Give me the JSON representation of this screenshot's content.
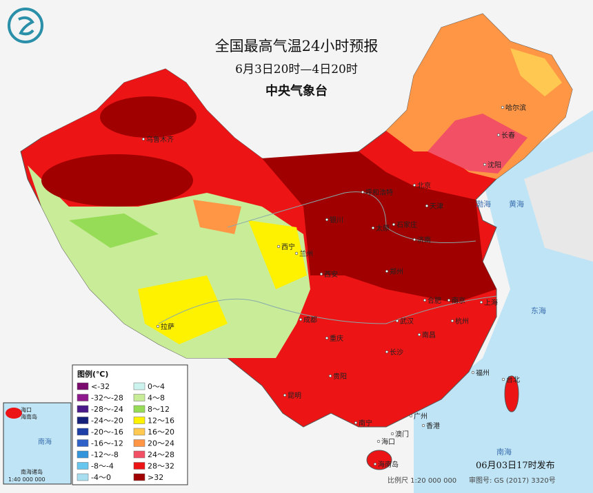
{
  "header": {
    "title": "全国最高气温24小时预报",
    "subtitle": "6月3日20时—4日20时",
    "agency": "中央气象台"
  },
  "legend": {
    "title": "图例(℃)",
    "items": [
      {
        "label": "<-32",
        "color": "#7a0a6e"
      },
      {
        "label": "-32～-28",
        "color": "#8e1a8e"
      },
      {
        "label": "-28～-24",
        "color": "#4a1a8a"
      },
      {
        "label": "-24～-20",
        "color": "#14207a"
      },
      {
        "label": "-20～-16",
        "color": "#1e3ea8"
      },
      {
        "label": "-16～-12",
        "color": "#2f62c8"
      },
      {
        "label": "-12～-8",
        "color": "#3396dc"
      },
      {
        "label": "-8～-4",
        "color": "#66c6ee"
      },
      {
        "label": "-4～0",
        "color": "#a8dff0"
      },
      {
        "label": "0～4",
        "color": "#cdf3ee"
      },
      {
        "label": "4～8",
        "color": "#c8ec98"
      },
      {
        "label": "8～12",
        "color": "#96dc56"
      },
      {
        "label": "12～16",
        "color": "#fff200"
      },
      {
        "label": "16～20",
        "color": "#ffc850"
      },
      {
        "label": "20～24",
        "color": "#ff9646"
      },
      {
        "label": "24～28",
        "color": "#f25064"
      },
      {
        "label": "28～32",
        "color": "#ec1414"
      },
      {
        "label": ">32",
        "color": "#a00000"
      }
    ]
  },
  "map": {
    "cities": [
      "乌鲁木齐",
      "哈尔滨",
      "长春",
      "沈阳",
      "呼和浩特",
      "北京",
      "天津",
      "石家庄",
      "太原",
      "济南",
      "银川",
      "西宁",
      "兰州",
      "西安",
      "郑州",
      "南京",
      "合肥",
      "上海",
      "武汉",
      "杭州",
      "成都",
      "重庆",
      "长沙",
      "南昌",
      "福州",
      "贵阳",
      "昆明",
      "南宁",
      "广州",
      "香港",
      "澳门",
      "海口",
      "台北",
      "拉萨",
      "海南岛"
    ],
    "seas": [
      "渤海",
      "黄海",
      "东海",
      "南海"
    ]
  },
  "inset": {
    "island": "海南岛",
    "city": "海口",
    "sea": "南海",
    "islands": "南海诸岛",
    "scale": "1:40 000 000"
  },
  "footer": {
    "issued": "06月03日17时发布",
    "scale": "比例尺 1:20 000 000",
    "approval": "审图号: GS (2017) 3320号"
  }
}
